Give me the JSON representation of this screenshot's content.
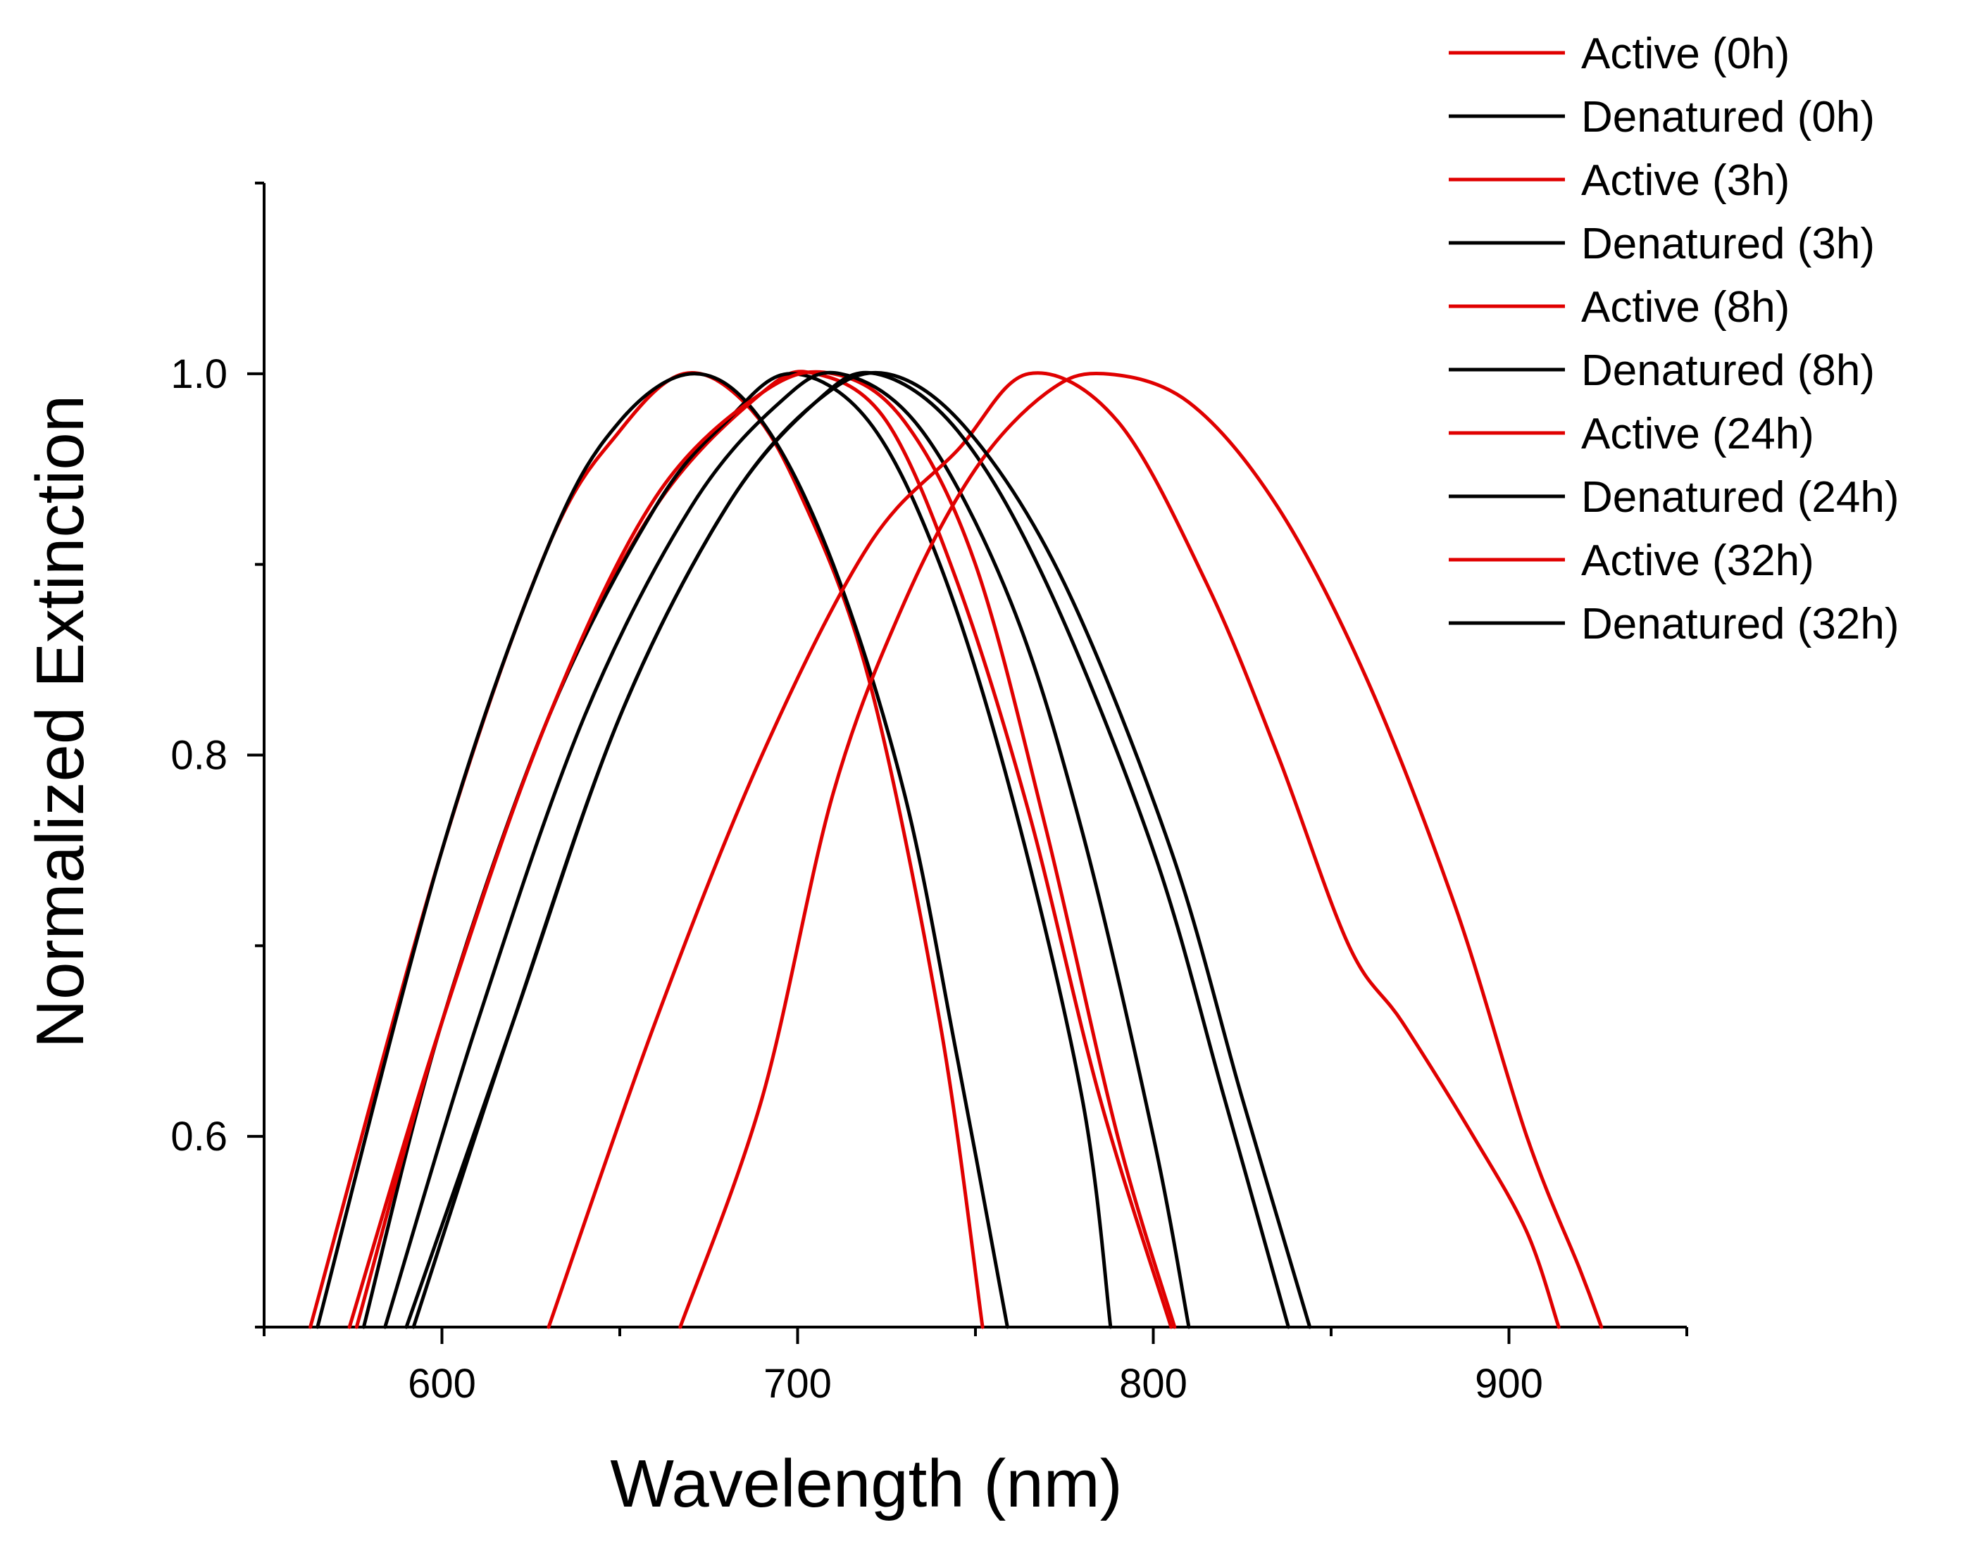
{
  "chart_data": {
    "type": "line",
    "title": "",
    "xlabel": "Wavelength (nm)",
    "ylabel": "Normalized Extinction",
    "xlim": [
      550,
      950
    ],
    "ylim": [
      0.5,
      1.1
    ],
    "xticks": [
      600,
      700,
      800,
      900
    ],
    "xticks_minor": [
      550,
      650,
      750,
      850,
      950
    ],
    "yticks": [
      0.6,
      0.8,
      1.0
    ],
    "yticks_minor": [
      0.5,
      0.7,
      0.9,
      1.1
    ],
    "xtick_labels": [
      "600",
      "700",
      "800",
      "900"
    ],
    "ytick_labels": [
      "0.6",
      "0.8",
      "1.0"
    ],
    "grid": false,
    "legend_position": "top-right",
    "series": [
      {
        "name": "Active (0h)",
        "color": "#e00000",
        "points": [
          [
            563,
            0.5
          ],
          [
            600,
            0.75
          ],
          [
            630,
            0.91
          ],
          [
            650,
            0.97
          ],
          [
            668,
            1.0
          ],
          [
            685,
            0.985
          ],
          [
            700,
            0.94
          ],
          [
            720,
            0.84
          ],
          [
            740,
            0.66
          ],
          [
            752,
            0.5
          ]
        ]
      },
      {
        "name": " Denatured (0h)",
        "color": "#000000",
        "points": [
          [
            565,
            0.5
          ],
          [
            600,
            0.75
          ],
          [
            630,
            0.91
          ],
          [
            650,
            0.975
          ],
          [
            671,
            1.0
          ],
          [
            690,
            0.975
          ],
          [
            710,
            0.9
          ],
          [
            730,
            0.78
          ],
          [
            745,
            0.64
          ],
          [
            759,
            0.5
          ]
        ]
      },
      {
        "name": "Active (3h)",
        "color": "#e00000",
        "points": [
          [
            574,
            0.5
          ],
          [
            600,
            0.66
          ],
          [
            630,
            0.82
          ],
          [
            660,
            0.93
          ],
          [
            690,
            0.99
          ],
          [
            705,
            1.0
          ],
          [
            725,
            0.975
          ],
          [
            745,
            0.89
          ],
          [
            765,
            0.77
          ],
          [
            785,
            0.62
          ],
          [
            805,
            0.5
          ]
        ]
      },
      {
        "name": "Denatured (3h)",
        "color": "#000000",
        "points": [
          [
            578,
            0.5
          ],
          [
            600,
            0.66
          ],
          [
            630,
            0.82
          ],
          [
            660,
            0.93
          ],
          [
            680,
            0.975
          ],
          [
            698,
            1.0
          ],
          [
            720,
            0.975
          ],
          [
            740,
            0.9
          ],
          [
            760,
            0.78
          ],
          [
            780,
            0.62
          ],
          [
            788,
            0.5
          ]
        ]
      },
      {
        "name": "Active (8h)",
        "color": "#e00000",
        "points": [
          [
            576,
            0.5
          ],
          [
            600,
            0.66
          ],
          [
            630,
            0.82
          ],
          [
            660,
            0.935
          ],
          [
            690,
            0.99
          ],
          [
            710,
            1.0
          ],
          [
            730,
            0.975
          ],
          [
            750,
            0.9
          ],
          [
            770,
            0.76
          ],
          [
            790,
            0.6
          ],
          [
            806,
            0.5
          ]
        ]
      },
      {
        "name": "Denatured (8h)",
        "color": "#000000",
        "points": [
          [
            584,
            0.5
          ],
          [
            610,
            0.66
          ],
          [
            640,
            0.82
          ],
          [
            670,
            0.93
          ],
          [
            695,
            0.985
          ],
          [
            712,
            1.0
          ],
          [
            735,
            0.97
          ],
          [
            760,
            0.88
          ],
          [
            780,
            0.76
          ],
          [
            800,
            0.6
          ],
          [
            810,
            0.5
          ]
        ]
      },
      {
        "name": "Active (24h)",
        "color": "#e00000",
        "points": [
          [
            630,
            0.5
          ],
          [
            660,
            0.66
          ],
          [
            690,
            0.8
          ],
          [
            720,
            0.91
          ],
          [
            745,
            0.96
          ],
          [
            765,
            1.0
          ],
          [
            790,
            0.975
          ],
          [
            815,
            0.89
          ],
          [
            835,
            0.8
          ],
          [
            855,
            0.7
          ],
          [
            870,
            0.66
          ],
          [
            890,
            0.6
          ],
          [
            905,
            0.55
          ],
          [
            914,
            0.5
          ]
        ]
      },
      {
        "name": "Denatured (24h)",
        "color": "#000000",
        "points": [
          [
            590,
            0.5
          ],
          [
            620,
            0.66
          ],
          [
            650,
            0.82
          ],
          [
            680,
            0.93
          ],
          [
            705,
            0.985
          ],
          [
            722,
            1.0
          ],
          [
            745,
            0.97
          ],
          [
            770,
            0.89
          ],
          [
            800,
            0.75
          ],
          [
            820,
            0.62
          ],
          [
            838,
            0.5
          ]
        ]
      },
      {
        "name": "Active (32h)",
        "color": "#e00000",
        "points": [
          [
            667,
            0.5
          ],
          [
            690,
            0.62
          ],
          [
            710,
            0.78
          ],
          [
            730,
            0.88
          ],
          [
            750,
            0.95
          ],
          [
            770,
            0.99
          ],
          [
            786,
            1.0
          ],
          [
            810,
            0.985
          ],
          [
            835,
            0.93
          ],
          [
            860,
            0.84
          ],
          [
            885,
            0.72
          ],
          [
            905,
            0.6
          ],
          [
            920,
            0.53
          ],
          [
            926,
            0.5
          ]
        ]
      },
      {
        "name": "Denatured (32h)",
        "color": "#000000",
        "points": [
          [
            592,
            0.5
          ],
          [
            620,
            0.66
          ],
          [
            650,
            0.82
          ],
          [
            680,
            0.93
          ],
          [
            705,
            0.985
          ],
          [
            725,
            1.0
          ],
          [
            748,
            0.97
          ],
          [
            775,
            0.89
          ],
          [
            805,
            0.75
          ],
          [
            825,
            0.62
          ],
          [
            844,
            0.5
          ]
        ]
      }
    ]
  }
}
